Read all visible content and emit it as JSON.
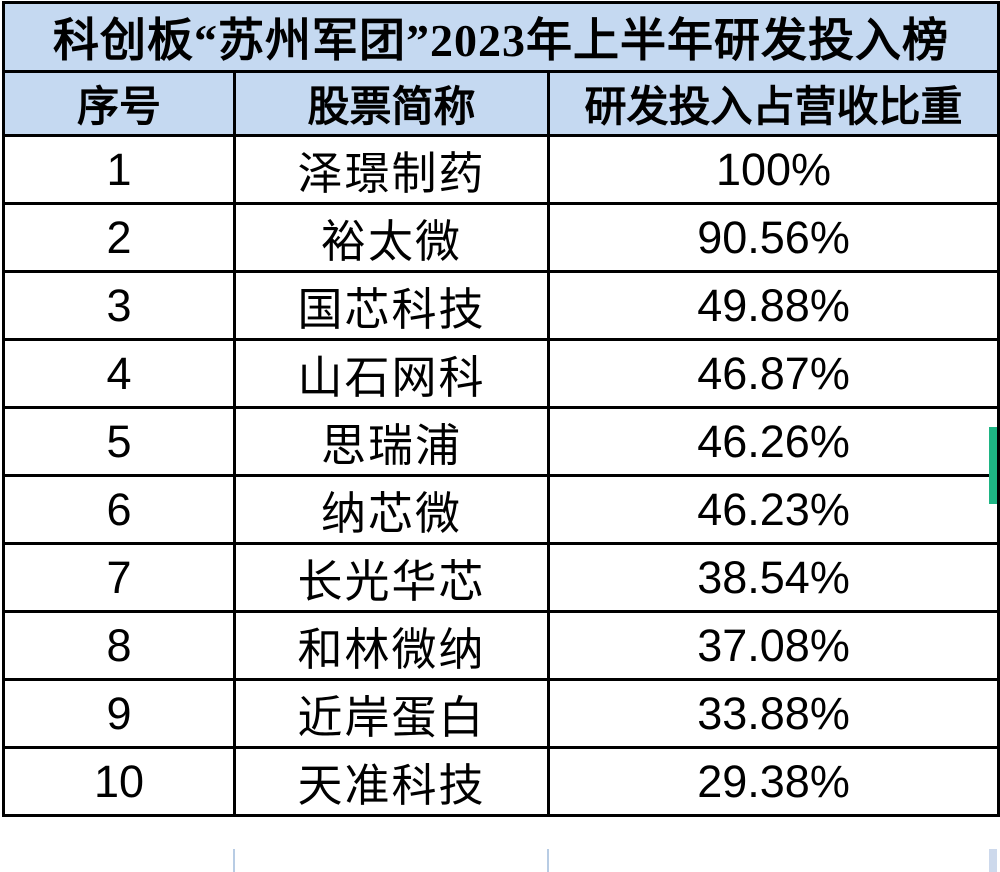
{
  "chart_data": {
    "type": "table",
    "title": "科创板“苏州军团”2023年上半年研发投入榜",
    "columns": [
      "序号",
      "股票简称",
      "研发投入占营收比重"
    ],
    "rows": [
      [
        "1",
        "泽璟制药",
        "100%"
      ],
      [
        "2",
        "裕太微",
        "90.56%"
      ],
      [
        "3",
        "国芯科技",
        "49.88%"
      ],
      [
        "4",
        "山石网科",
        "46.87%"
      ],
      [
        "5",
        "思瑞浦",
        "46.26%"
      ],
      [
        "6",
        "纳芯微",
        "46.23%"
      ],
      [
        "7",
        "长光华芯",
        "38.54%"
      ],
      [
        "8",
        "和林微纳",
        "37.08%"
      ],
      [
        "9",
        "近岸蛋白",
        "33.88%"
      ],
      [
        "10",
        "天准科技",
        "29.38%"
      ]
    ],
    "layout": {
      "header_background": "#c5d9f1",
      "border_color": "#000000",
      "row_background": "#ffffff",
      "grid": "on"
    }
  },
  "annotations": {
    "selection_marker_row": "5",
    "selection_marker_color": "#1eb584",
    "gridline_color": "#b8cce4"
  }
}
